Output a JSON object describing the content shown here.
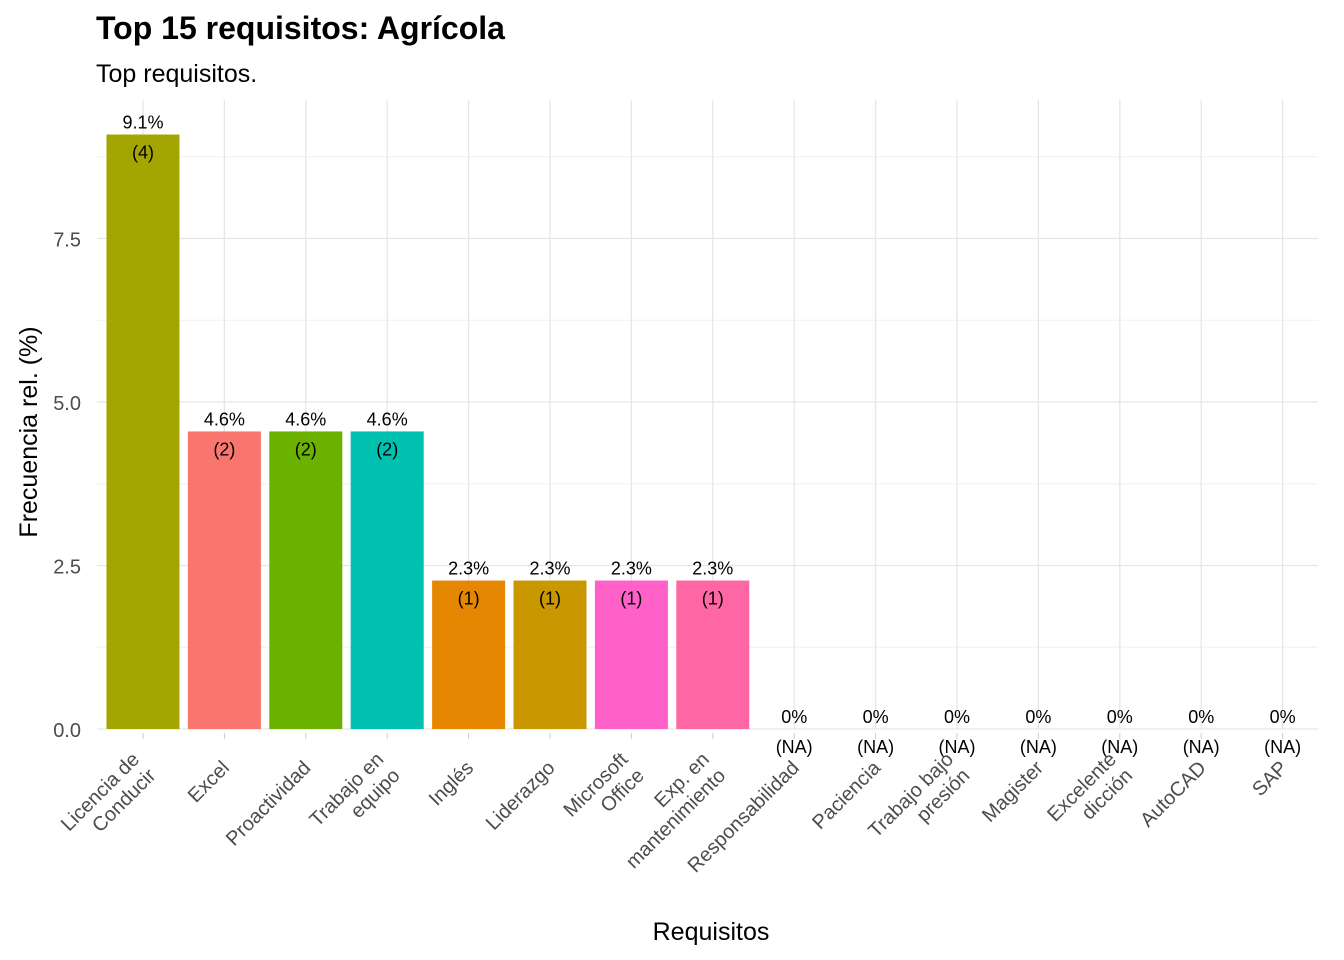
{
  "chart_data": {
    "type": "bar",
    "title": "Top 15 requisitos: Agrícola",
    "subtitle": "Top requisitos.",
    "xlabel": "Requisitos",
    "ylabel": "Frecuencia rel. (%)",
    "ylim": [
      0,
      9.1
    ],
    "yticks": [
      "0.0",
      "2.5",
      "5.0",
      "7.5"
    ],
    "grid": true,
    "categories": [
      [
        "Licencia de",
        "Conducir"
      ],
      [
        "Excel"
      ],
      [
        "Proactividad"
      ],
      [
        "Trabajo en",
        "equipo"
      ],
      [
        "Inglés"
      ],
      [
        "Liderazgo"
      ],
      [
        "Microsoft",
        "Office"
      ],
      [
        "Exp. en",
        "mantenimiento"
      ],
      [
        "Responsabilidad"
      ],
      [
        "Paciencia"
      ],
      [
        "Trabajo bajo",
        "presión"
      ],
      [
        "Magister"
      ],
      [
        "Excelente",
        "dicción"
      ],
      [
        "AutoCAD"
      ],
      [
        "SAP"
      ]
    ],
    "values": [
      9.09,
      4.55,
      4.55,
      4.55,
      2.27,
      2.27,
      2.27,
      2.27,
      0,
      0,
      0,
      0,
      0,
      0,
      0
    ],
    "pct_labels": [
      "9.1%",
      "4.6%",
      "4.6%",
      "4.6%",
      "2.3%",
      "2.3%",
      "2.3%",
      "2.3%",
      "0%",
      "0%",
      "0%",
      "0%",
      "0%",
      "0%",
      "0%"
    ],
    "count_labels": [
      "(4)",
      "(2)",
      "(2)",
      "(2)",
      "(1)",
      "(1)",
      "(1)",
      "(1)",
      "(NA)",
      "(NA)",
      "(NA)",
      "(NA)",
      "(NA)",
      "(NA)",
      "(NA)"
    ],
    "colors": [
      "#A3A500",
      "#F8766D",
      "#6BB100",
      "#00C0AF",
      "#E58700",
      "#C99800",
      "#FF61C9",
      "#FF67A4",
      "#00BA38",
      "#00BCD8",
      "#00A9FF",
      "#619CFF",
      "#B983FF",
      "#E76BF3",
      "#FD61D1"
    ]
  }
}
